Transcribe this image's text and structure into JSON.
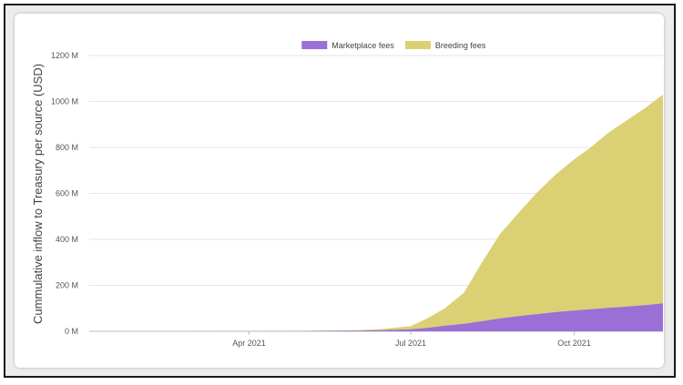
{
  "chart_data": {
    "type": "area",
    "stacked": true,
    "ylabel": "Cummulative inflow to Treasury per source (USD)",
    "xlabel": "",
    "yunit_suffix": " M",
    "ylim": [
      0,
      1200
    ],
    "yticks": [
      0,
      200,
      400,
      600,
      800,
      1000,
      1200
    ],
    "ytick_labels": [
      "0 M",
      "200 M",
      "400 M",
      "600 M",
      "800 M",
      "1000 M",
      "1200 M"
    ],
    "xlim": [
      "2021-01-01",
      "2021-11-20"
    ],
    "xticks": [
      {
        "date": "2021-04-01",
        "label": "Apr 2021"
      },
      {
        "date": "2021-07-01",
        "label": "Jul 2021"
      },
      {
        "date": "2021-10-01",
        "label": "Oct 2021"
      }
    ],
    "legend_position": "top-center",
    "grid": true,
    "x": [
      "2021-01-01",
      "2021-02-01",
      "2021-03-01",
      "2021-04-01",
      "2021-05-01",
      "2021-06-01",
      "2021-06-15",
      "2021-07-01",
      "2021-07-10",
      "2021-07-20",
      "2021-07-31",
      "2021-08-10",
      "2021-08-20",
      "2021-08-31",
      "2021-09-10",
      "2021-09-20",
      "2021-09-30",
      "2021-10-10",
      "2021-10-20",
      "2021-10-31",
      "2021-11-10",
      "2021-11-20"
    ],
    "series": [
      {
        "name": "Marketplace fees",
        "color": "#9b6fd6",
        "values": [
          0,
          0,
          0,
          0.5,
          1,
          3,
          5,
          9,
          15,
          24,
          33,
          44,
          56,
          66,
          75,
          83,
          90,
          96,
          102,
          108,
          114,
          122
        ]
      },
      {
        "name": "Breeding fees",
        "color": "#dbd073",
        "values": [
          0,
          0,
          0,
          0.5,
          1,
          2,
          5,
          13,
          40,
          75,
          135,
          255,
          365,
          452,
          528,
          595,
          652,
          702,
          760,
          812,
          858,
          908
        ]
      }
    ]
  }
}
